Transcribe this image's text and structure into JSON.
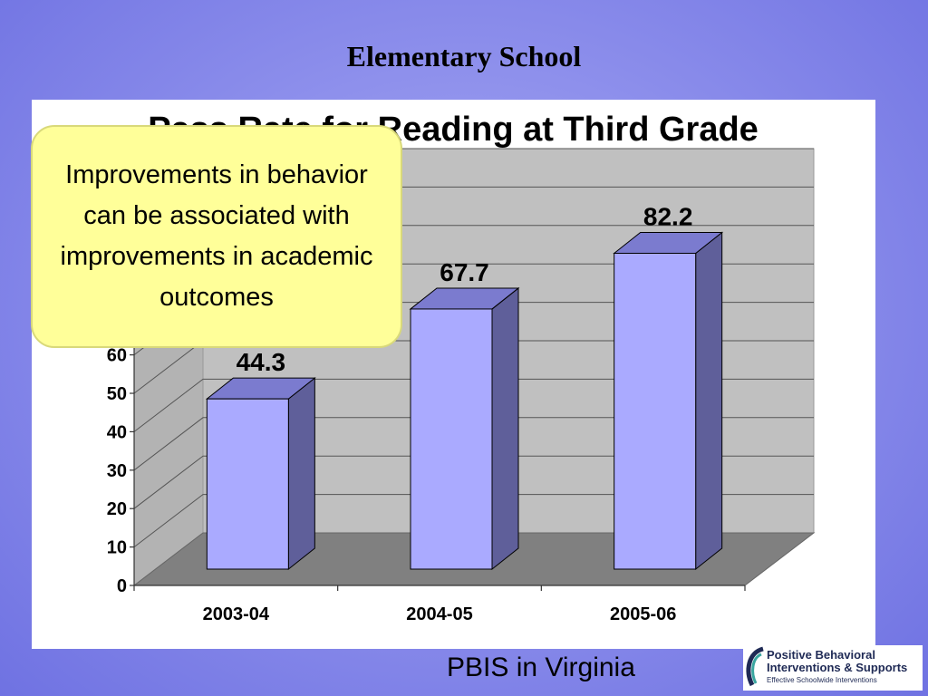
{
  "slide": {
    "title": "Elementary School",
    "footer": "PBIS in Virginia",
    "callout_text": "Improvements in behavior can be associated with improvements in academic outcomes"
  },
  "logo": {
    "line1": "Positive Behavioral",
    "line2": "Interventions & Supports",
    "line3": "Effective Schoolwide Interventions"
  },
  "chart_data": {
    "type": "bar",
    "title": "Pass Rate for Reading at Third Grade",
    "categories": [
      "2003-04",
      "2004-05",
      "2005-06"
    ],
    "values": [
      44.3,
      67.7,
      82.2
    ],
    "data_labels": [
      "44.3",
      "67.7",
      "82.2"
    ],
    "y_ticks": [
      0,
      10,
      20,
      30,
      40,
      50,
      60
    ],
    "ylim": [
      0,
      100
    ],
    "grid": true,
    "style": "3d",
    "colors": {
      "bar_front": "#aaaaff",
      "bar_side": "#5f5f9a",
      "bar_top": "#7b7bcf",
      "wall": "#c0c0c0",
      "floor": "#808080"
    }
  }
}
